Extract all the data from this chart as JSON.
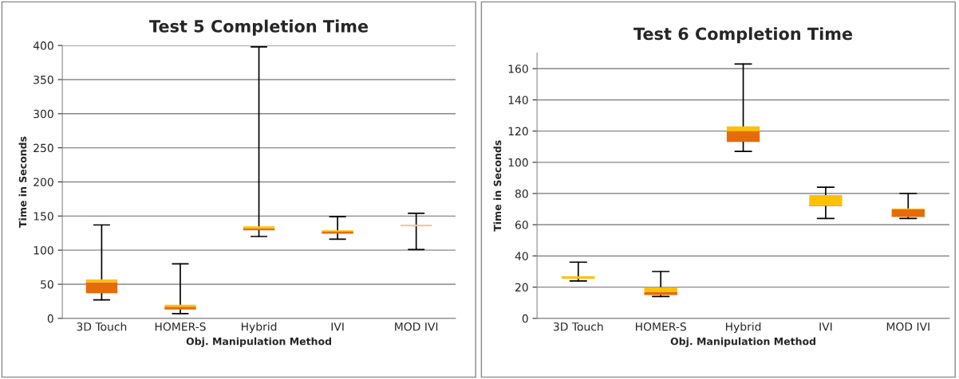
{
  "chart_data": [
    {
      "type": "box",
      "title": "Test 5 Completion Time",
      "xlabel": "Obj. Manipulation Method",
      "ylabel": "Time in Seconds",
      "categories": [
        "3D Touch",
        "HOMER-S",
        "Hybrid",
        "IVI",
        "MOD IVI"
      ],
      "series": [
        {
          "color": "#ffc000",
          "colors": [
            "#e46c0a",
            "#e46c0a",
            "#e46c0a",
            "#e46c0a",
            "#fac08f"
          ],
          "boxes": [
            {
              "low": 27,
              "q1": 37,
              "median": 53,
              "q3": 57,
              "high": 137
            },
            {
              "low": 7,
              "q1": 13,
              "median": 17,
              "q3": 20,
              "high": 80
            },
            {
              "low": 120,
              "q1": 129,
              "median": 132,
              "q3": 135,
              "high": 398
            },
            {
              "low": 116,
              "q1": 124,
              "median": 127,
              "q3": 129,
              "high": 149
            },
            {
              "low": 101,
              "q1": 136,
              "median": 136,
              "q3": 136,
              "high": 154
            }
          ]
        }
      ],
      "ylim": [
        0,
        400
      ],
      "yticks": [
        0,
        50,
        100,
        150,
        200,
        250,
        300,
        350,
        400
      ],
      "grid": "y",
      "legend": false
    },
    {
      "type": "box",
      "title": "Test 6 Completion Time",
      "xlabel": "Obj. Manipulation Method",
      "ylabel": "Time in Seconds",
      "categories": [
        "3D Touch",
        "HOMER-S",
        "Hybrid",
        "IVI",
        "MOD IVI"
      ],
      "series": [
        {
          "color": "#ffc000",
          "colors": [
            "#ffc000",
            "#e46c0a",
            "#e46c0a",
            "#e46c0a",
            "#e46c0a"
          ],
          "boxes": [
            {
              "low": 24,
              "q1": 26,
              "median": 26,
              "q3": 27,
              "high": 36
            },
            {
              "low": 14,
              "q1": 15,
              "median": 17,
              "q3": 20,
              "high": 30
            },
            {
              "low": 107,
              "q1": 113,
              "median": 120,
              "q3": 123,
              "high": 163
            },
            {
              "low": 64,
              "q1": 72,
              "median": 72.5,
              "q3": 79,
              "high": 84
            },
            {
              "low": 64,
              "q1": 65,
              "median": 70,
              "q3": 70.5,
              "high": 80
            }
          ]
        }
      ],
      "ylim": [
        0,
        170
      ],
      "yticks": [
        0,
        20,
        40,
        60,
        80,
        100,
        120,
        140,
        160
      ],
      "grid": "y",
      "legend": false
    }
  ]
}
